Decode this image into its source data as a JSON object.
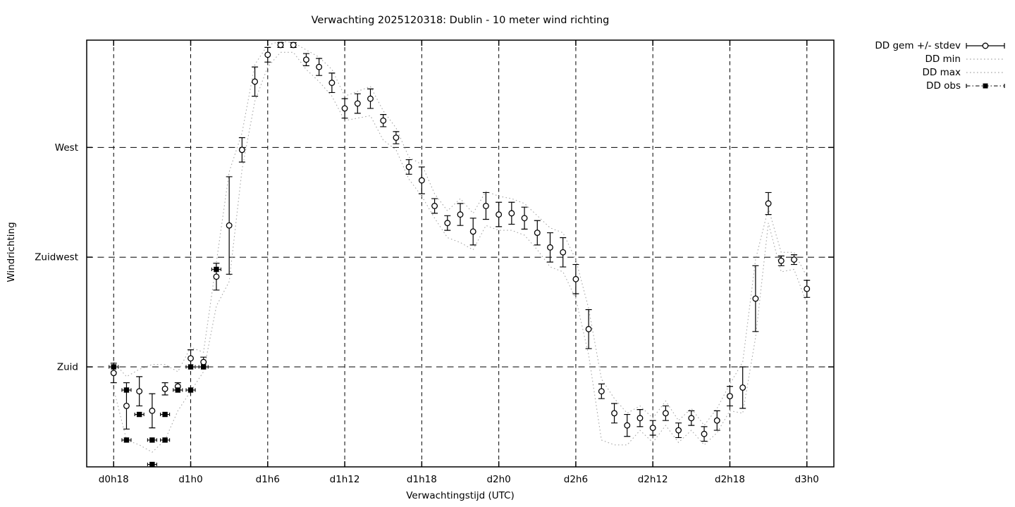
{
  "chart": {
    "title": "Verwachting 2025120318: Dublin - 10 meter wind richting",
    "xlabel": "Verwachtingstijd (UTC)",
    "ylabel": "Windrichting"
  },
  "legend": {
    "items": [
      {
        "label": "DD gem +/- stdev",
        "symbol": "errorbar-circle"
      },
      {
        "label": "DD min",
        "symbol": "dotted-line"
      },
      {
        "label": "DD max",
        "symbol": "dotted-line"
      },
      {
        "label": "DD obs",
        "symbol": "dashdot-filled-square"
      }
    ]
  },
  "colors": {
    "foreground": "#000000",
    "envelope_dotted": "#a8a8a8",
    "background": "#ffffff"
  },
  "chart_data": {
    "type": "line",
    "style": "mean error bars (open circles) + dotted min/max envelope + observed filled squares",
    "grid": "dashed major grid on",
    "legend_position": "outside top-right",
    "x_unit": "forecast hour (d0h18 = hour 18)",
    "y_unit": "wind direction, degrees",
    "x_range_hours": [
      15.9,
      74.1
    ],
    "y_range_deg": [
      139,
      314
    ],
    "x_ticks": [
      {
        "v": 18,
        "label": "d0h18"
      },
      {
        "v": 24,
        "label": "d1h0"
      },
      {
        "v": 30,
        "label": "d1h6"
      },
      {
        "v": 36,
        "label": "d1h12"
      },
      {
        "v": 42,
        "label": "d1h18"
      },
      {
        "v": 48,
        "label": "d2h0"
      },
      {
        "v": 54,
        "label": "d2h6"
      },
      {
        "v": 60,
        "label": "d2h12"
      },
      {
        "v": 66,
        "label": "d2h18"
      },
      {
        "v": 72,
        "label": "d3h0"
      }
    ],
    "y_ticks": [
      {
        "v": 180,
        "label": "Zuid"
      },
      {
        "v": 225,
        "label": "Zuidwest"
      },
      {
        "v": 270,
        "label": "West"
      }
    ],
    "hours": [
      18,
      19,
      20,
      21,
      22,
      23,
      24,
      25,
      26,
      27,
      28,
      29,
      30,
      31,
      32,
      33,
      34,
      35,
      36,
      37,
      38,
      39,
      40,
      41,
      42,
      43,
      44,
      45,
      46,
      47,
      48,
      49,
      50,
      51,
      52,
      53,
      54,
      55,
      56,
      57,
      58,
      59,
      60,
      61,
      62,
      63,
      64,
      65,
      66,
      67,
      68,
      69,
      70,
      71,
      72
    ],
    "mean": [
      177.5,
      164,
      170,
      162,
      171,
      172,
      183.5,
      182,
      217,
      238,
      269,
      297,
      308,
      312,
      312,
      306,
      303,
      296.5,
      286,
      288,
      290,
      281,
      274,
      262,
      256.5,
      246,
      239,
      242.5,
      235.5,
      246,
      242.5,
      243,
      241,
      235,
      229,
      227,
      216,
      195.5,
      170,
      161,
      156,
      159,
      155,
      161,
      154,
      159,
      152.5,
      158,
      168,
      171.5,
      208,
      247,
      223.5,
      224,
      212
    ],
    "stdev": [
      4,
      9.5,
      6,
      7,
      2.5,
      1.5,
      3.5,
      2,
      5.5,
      20,
      5,
      6,
      3,
      1,
      1,
      2.5,
      3.5,
      4,
      4,
      4,
      4,
      2.5,
      2.5,
      3,
      5.5,
      3,
      3,
      4.5,
      5.5,
      5.5,
      5,
      4.5,
      4.5,
      5,
      6,
      6,
      6,
      8,
      3,
      4,
      4.5,
      3.5,
      3,
      3,
      3,
      3,
      3,
      4,
      4,
      8.5,
      13.5,
      4.5,
      2,
      2,
      3.5
    ],
    "min": [
      171,
      150,
      148,
      145,
      150,
      162,
      170,
      178,
      205,
      215,
      261,
      289,
      303,
      309,
      309,
      302,
      297,
      291,
      281,
      282,
      283,
      273,
      269,
      257,
      250,
      241,
      233,
      231,
      228,
      238,
      236,
      236,
      234,
      228,
      221,
      219,
      208,
      185,
      150,
      148,
      148,
      154,
      149,
      156,
      149,
      154,
      148,
      153,
      162,
      161,
      192,
      239,
      219,
      220,
      206
    ],
    "max": [
      182,
      176,
      179,
      181,
      181,
      178,
      188,
      186,
      223,
      260,
      276,
      304,
      312,
      313.5,
      313,
      310,
      307,
      302,
      291,
      293,
      295,
      285,
      278,
      266,
      263,
      251,
      244,
      249,
      243,
      252,
      250,
      249,
      247,
      242,
      237,
      235,
      224,
      204,
      175,
      167,
      161,
      164,
      159,
      166,
      158,
      163,
      156,
      163,
      173,
      182,
      224,
      245,
      227,
      227,
      217
    ],
    "obs": [
      [
        18,
        180
      ],
      [
        19,
        170.5
      ],
      [
        19,
        150
      ],
      [
        20,
        160.5
      ],
      [
        21,
        150
      ],
      [
        21,
        140
      ],
      [
        22,
        160.5
      ],
      [
        22,
        150
      ],
      [
        23,
        170.5
      ],
      [
        24,
        180
      ],
      [
        24,
        170.5
      ],
      [
        25,
        180
      ],
      [
        26,
        220
      ]
    ]
  }
}
